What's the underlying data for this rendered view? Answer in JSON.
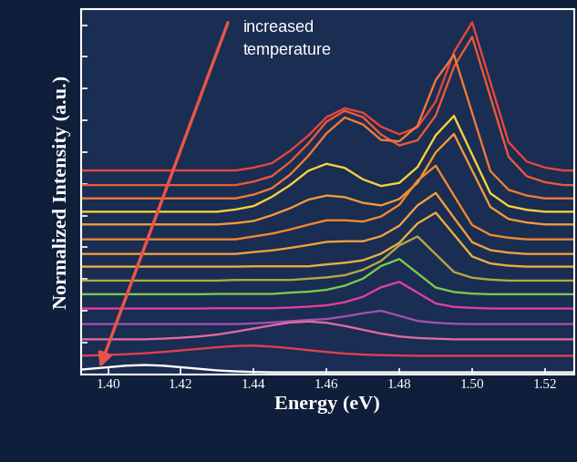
{
  "chart_data": {
    "type": "line",
    "x_label": "Energy (eV)",
    "y_label": "Normalized Intensity (a.u.)",
    "annotation": "increased\ntemperature",
    "x": [
      1.39,
      1.395,
      1.4,
      1.405,
      1.41,
      1.415,
      1.42,
      1.425,
      1.43,
      1.435,
      1.44,
      1.445,
      1.45,
      1.455,
      1.46,
      1.465,
      1.47,
      1.475,
      1.48,
      1.485,
      1.49,
      1.495,
      1.5,
      1.505,
      1.51,
      1.515,
      1.52,
      1.525,
      1.53
    ],
    "xlim": [
      1.3925,
      1.528
    ],
    "xticks": [
      {
        "value": 1.4,
        "label": "1.40"
      },
      {
        "value": 1.42,
        "label": "1.42"
      },
      {
        "value": 1.44,
        "label": "1.44"
      },
      {
        "value": 1.46,
        "label": "1.46"
      },
      {
        "value": 1.48,
        "label": "1.48"
      },
      {
        "value": 1.5,
        "label": "1.50"
      },
      {
        "value": 1.52,
        "label": "1.52"
      }
    ],
    "ylim": [
      0,
      11.5
    ],
    "yticks": [
      1,
      2,
      3,
      4,
      5,
      6,
      7,
      8,
      9,
      10,
      11
    ],
    "tick_labels": "x",
    "series": [
      {
        "color": "#e8453c",
        "values": [
          6.42,
          6.42,
          6.42,
          6.42,
          6.42,
          6.42,
          6.42,
          6.42,
          6.42,
          6.42,
          6.51,
          6.65,
          7.04,
          7.52,
          8.1,
          8.38,
          8.24,
          7.8,
          7.56,
          7.78,
          8.59,
          10.15,
          11.09,
          9.2,
          7.31,
          6.7,
          6.51,
          6.42,
          6.42
        ]
      },
      {
        "color": "#e85a3a",
        "values": [
          5.96,
          5.96,
          5.96,
          5.96,
          5.96,
          5.96,
          5.96,
          5.96,
          5.96,
          5.96,
          6.07,
          6.24,
          6.69,
          7.27,
          7.96,
          8.3,
          8.1,
          7.55,
          7.21,
          7.37,
          8.15,
          9.69,
          10.63,
          8.74,
          6.85,
          6.24,
          6.05,
          5.96,
          5.96
        ]
      },
      {
        "color": "#f07a3a",
        "values": [
          5.54,
          5.54,
          5.54,
          5.54,
          5.54,
          5.54,
          5.54,
          5.54,
          5.54,
          5.54,
          5.66,
          5.86,
          6.29,
          6.88,
          7.59,
          8.09,
          7.87,
          7.38,
          7.34,
          7.83,
          9.27,
          10.06,
          8.23,
          6.4,
          5.81,
          5.63,
          5.54,
          5.54,
          5.54
        ]
      },
      {
        "color": "#f5d23c",
        "values": [
          5.12,
          5.12,
          5.12,
          5.12,
          5.12,
          5.12,
          5.12,
          5.12,
          5.12,
          5.19,
          5.3,
          5.59,
          5.96,
          6.41,
          6.63,
          6.5,
          6.14,
          5.93,
          6.03,
          6.53,
          7.53,
          8.14,
          6.92,
          5.7,
          5.3,
          5.18,
          5.12,
          5.12,
          5.12
        ]
      },
      {
        "color": "#f39a3a",
        "values": [
          4.72,
          4.72,
          4.72,
          4.72,
          4.72,
          4.72,
          4.72,
          4.72,
          4.72,
          4.76,
          4.83,
          5.01,
          5.23,
          5.5,
          5.63,
          5.58,
          5.4,
          5.32,
          5.52,
          6.03,
          6.99,
          7.57,
          6.42,
          5.27,
          4.89,
          4.78,
          4.72,
          4.72,
          4.72
        ]
      },
      {
        "color": "#f08a30",
        "values": [
          4.25,
          4.25,
          4.25,
          4.25,
          4.25,
          4.25,
          4.25,
          4.25,
          4.25,
          4.25,
          4.34,
          4.43,
          4.56,
          4.71,
          4.85,
          4.85,
          4.81,
          4.97,
          5.34,
          6.1,
          6.57,
          5.63,
          4.7,
          4.39,
          4.3,
          4.25,
          4.25,
          4.25,
          4.25
        ]
      },
      {
        "color": "#f0a040",
        "values": [
          3.79,
          3.79,
          3.79,
          3.79,
          3.79,
          3.79,
          3.79,
          3.79,
          3.79,
          3.79,
          3.85,
          3.9,
          3.98,
          4.07,
          4.17,
          4.19,
          4.19,
          4.35,
          4.68,
          5.32,
          5.71,
          4.93,
          4.16,
          3.91,
          3.83,
          3.79,
          3.79,
          3.79,
          3.79
        ]
      },
      {
        "color": "#e8b040",
        "values": [
          3.39,
          3.39,
          3.39,
          3.39,
          3.39,
          3.39,
          3.39,
          3.39,
          3.39,
          3.39,
          3.4,
          3.4,
          3.4,
          3.4,
          3.46,
          3.51,
          3.59,
          3.8,
          4.14,
          4.75,
          5.09,
          4.4,
          3.71,
          3.49,
          3.42,
          3.39,
          3.39,
          3.39,
          3.39
        ]
      },
      {
        "color": "#b5a840",
        "values": [
          2.95,
          2.95,
          2.95,
          2.95,
          2.95,
          2.95,
          2.95,
          2.95,
          2.95,
          2.97,
          2.97,
          2.97,
          2.97,
          3.01,
          3.05,
          3.12,
          3.29,
          3.57,
          4.06,
          4.34,
          3.78,
          3.22,
          3.04,
          2.98,
          2.95,
          2.95,
          2.95,
          2.95,
          2.95
        ]
      },
      {
        "color": "#7cc850",
        "values": [
          2.52,
          2.52,
          2.52,
          2.52,
          2.52,
          2.52,
          2.52,
          2.52,
          2.53,
          2.53,
          2.53,
          2.53,
          2.57,
          2.6,
          2.66,
          2.79,
          3.01,
          3.41,
          3.63,
          3.18,
          2.73,
          2.59,
          2.54,
          2.52,
          2.52,
          2.52,
          2.52,
          2.52,
          2.52
        ]
      },
      {
        "color": "#e0409a",
        "values": [
          2.07,
          2.07,
          2.07,
          2.07,
          2.07,
          2.07,
          2.07,
          2.07,
          2.08,
          2.08,
          2.08,
          2.08,
          2.1,
          2.13,
          2.17,
          2.27,
          2.44,
          2.74,
          2.91,
          2.57,
          2.23,
          2.12,
          2.09,
          2.07,
          2.07,
          2.07,
          2.07,
          2.07,
          2.07
        ]
      },
      {
        "color": "#a050b0",
        "values": [
          1.58,
          1.58,
          1.58,
          1.58,
          1.58,
          1.58,
          1.58,
          1.58,
          1.58,
          1.58,
          1.6,
          1.63,
          1.67,
          1.71,
          1.74,
          1.82,
          1.92,
          2.0,
          1.84,
          1.68,
          1.62,
          1.59,
          1.58,
          1.58,
          1.58,
          1.58,
          1.58,
          1.58,
          1.58
        ]
      },
      {
        "color": "#e06aa0",
        "values": [
          1.1,
          1.1,
          1.1,
          1.1,
          1.1,
          1.12,
          1.15,
          1.19,
          1.25,
          1.34,
          1.44,
          1.54,
          1.63,
          1.66,
          1.62,
          1.52,
          1.4,
          1.28,
          1.19,
          1.14,
          1.12,
          1.1,
          1.1,
          1.1,
          1.1,
          1.1,
          1.1,
          1.1,
          1.1
        ]
      },
      {
        "color": "#e04050",
        "values": [
          0.58,
          0.59,
          0.61,
          0.63,
          0.66,
          0.7,
          0.75,
          0.8,
          0.85,
          0.89,
          0.9,
          0.87,
          0.82,
          0.76,
          0.7,
          0.65,
          0.62,
          0.6,
          0.59,
          0.58,
          0.58,
          0.58,
          0.58,
          0.58,
          0.58,
          0.58,
          0.58,
          0.58,
          0.58
        ]
      },
      {
        "color": "#ffffff",
        "values": [
          0.12,
          0.17,
          0.22,
          0.27,
          0.29,
          0.27,
          0.22,
          0.17,
          0.12,
          0.09,
          0.07,
          0.06,
          0.06,
          0.06,
          0.06,
          0.06,
          0.06,
          0.06,
          0.06,
          0.06,
          0.06,
          0.06,
          0.06,
          0.06,
          0.06,
          0.06,
          0.06,
          0.06,
          0.06
        ]
      }
    ]
  }
}
